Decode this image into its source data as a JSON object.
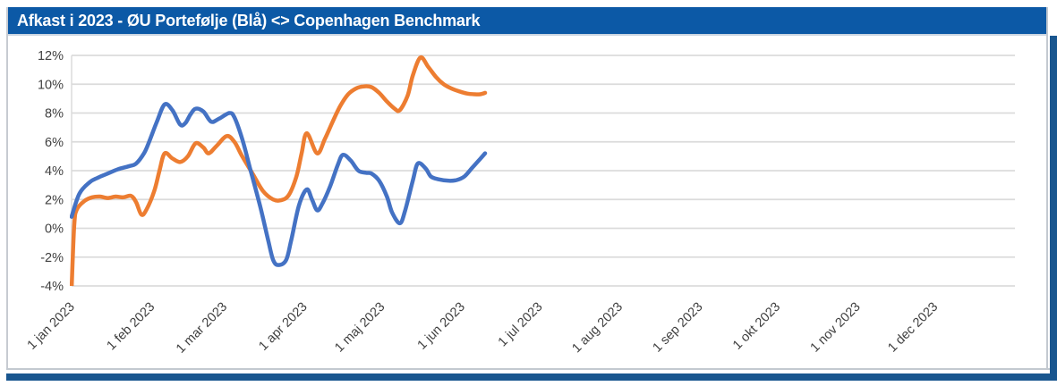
{
  "header": {
    "title": "Afkast i 2023 - ØU Portefølje (Blå) <> Copenhagen Benchmark"
  },
  "colors": {
    "title_bar_bg": "#0c59a6",
    "title_text": "#ffffff",
    "frame_accent": "#19568f",
    "gridline": "#dbdbdb",
    "axis_text": "#3f3f3f",
    "portfolio_blue": "#4472C4",
    "benchmark_orange": "#ED7D31"
  },
  "chart_data": {
    "type": "line",
    "title": "Afkast i 2023 - ØU Portefølje (Blå) <> Copenhagen Benchmark",
    "xlabel": "",
    "ylabel": "",
    "ylim": [
      -4,
      12
    ],
    "y_ticks": [
      12,
      10,
      8,
      6,
      4,
      2,
      0,
      -2,
      -4
    ],
    "y_tick_suffix": "%",
    "x_tick_labels": [
      "1 jan 2023",
      "1 feb 2023",
      "1 mar 2023",
      "1 apr 2023",
      "1 maj 2023",
      "1 jun 2023",
      "1 jul 2023",
      "1 aug 2023",
      "1 sep 2023",
      "1 okt 2023",
      "1 nov 2023",
      "1 dec 2023"
    ],
    "x_tick_days": [
      1,
      32,
      60,
      91,
      121,
      152,
      182,
      213,
      244,
      274,
      305,
      335
    ],
    "x_range_days": [
      1,
      366
    ],
    "grid": "horizontal-only",
    "legend_position": "none",
    "smooth": true,
    "series": [
      {
        "name": "Copenhagen Benchmark",
        "color": "#ED7D31",
        "points_day_pct": [
          [
            1,
            -4.2
          ],
          [
            2,
            0.2
          ],
          [
            3,
            1.3
          ],
          [
            6,
            1.9
          ],
          [
            9,
            2.15
          ],
          [
            12,
            2.2
          ],
          [
            15,
            2.1
          ],
          [
            18,
            2.2
          ],
          [
            21,
            2.15
          ],
          [
            24,
            2.25
          ],
          [
            26,
            1.8
          ],
          [
            28,
            0.95
          ],
          [
            30,
            1.3
          ],
          [
            33,
            2.6
          ],
          [
            35,
            4.0
          ],
          [
            37,
            5.2
          ],
          [
            40,
            4.85
          ],
          [
            43,
            4.6
          ],
          [
            46,
            5.0
          ],
          [
            49,
            5.9
          ],
          [
            52,
            5.6
          ],
          [
            54,
            5.2
          ],
          [
            57,
            5.7
          ],
          [
            61,
            6.4
          ],
          [
            64,
            6.0
          ],
          [
            67,
            5.0
          ],
          [
            71,
            3.8
          ],
          [
            75,
            2.6
          ],
          [
            79,
            2.0
          ],
          [
            82,
            1.95
          ],
          [
            85,
            2.3
          ],
          [
            88,
            3.6
          ],
          [
            90,
            5.2
          ],
          [
            92,
            6.6
          ],
          [
            96,
            5.2
          ],
          [
            99,
            6.2
          ],
          [
            102,
            7.4
          ],
          [
            105,
            8.5
          ],
          [
            108,
            9.3
          ],
          [
            111,
            9.7
          ],
          [
            114,
            9.85
          ],
          [
            117,
            9.8
          ],
          [
            120,
            9.4
          ],
          [
            123,
            8.8
          ],
          [
            126,
            8.3
          ],
          [
            128,
            8.2
          ],
          [
            131,
            9.2
          ],
          [
            133,
            10.6
          ],
          [
            136,
            11.85
          ],
          [
            139,
            11.2
          ],
          [
            142,
            10.5
          ],
          [
            145,
            10.0
          ],
          [
            148,
            9.7
          ],
          [
            151,
            9.5
          ],
          [
            154,
            9.35
          ],
          [
            157,
            9.3
          ],
          [
            159,
            9.3
          ],
          [
            161,
            9.4
          ]
        ]
      },
      {
        "name": "ØU Portefølje (Blå)",
        "color": "#4472C4",
        "points_day_pct": [
          [
            1,
            0.8
          ],
          [
            4,
            2.4
          ],
          [
            8,
            3.2
          ],
          [
            11,
            3.5
          ],
          [
            15,
            3.8
          ],
          [
            19,
            4.1
          ],
          [
            23,
            4.3
          ],
          [
            26,
            4.5
          ],
          [
            29,
            5.2
          ],
          [
            31,
            6.0
          ],
          [
            34,
            7.4
          ],
          [
            37,
            8.6
          ],
          [
            40,
            8.2
          ],
          [
            43,
            7.2
          ],
          [
            45,
            7.3
          ],
          [
            47,
            7.9
          ],
          [
            49,
            8.3
          ],
          [
            52,
            8.1
          ],
          [
            55,
            7.4
          ],
          [
            58,
            7.6
          ],
          [
            62,
            8.0
          ],
          [
            64,
            7.7
          ],
          [
            67,
            6.2
          ],
          [
            70,
            4.2
          ],
          [
            74,
            1.5
          ],
          [
            77,
            -0.8
          ],
          [
            79,
            -2.2
          ],
          [
            81,
            -2.55
          ],
          [
            84,
            -2.2
          ],
          [
            86,
            -0.8
          ],
          [
            89,
            1.6
          ],
          [
            92,
            2.7
          ],
          [
            94,
            2.0
          ],
          [
            96,
            1.25
          ],
          [
            98,
            1.7
          ],
          [
            101,
            2.9
          ],
          [
            104,
            4.4
          ],
          [
            106,
            5.1
          ],
          [
            109,
            4.7
          ],
          [
            112,
            4.0
          ],
          [
            115,
            3.85
          ],
          [
            117,
            3.8
          ],
          [
            120,
            3.3
          ],
          [
            123,
            2.2
          ],
          [
            125,
            1.1
          ],
          [
            128,
            0.35
          ],
          [
            130,
            1.2
          ],
          [
            133,
            3.3
          ],
          [
            135,
            4.5
          ],
          [
            138,
            4.15
          ],
          [
            140,
            3.6
          ],
          [
            143,
            3.4
          ],
          [
            147,
            3.3
          ],
          [
            150,
            3.35
          ],
          [
            153,
            3.6
          ],
          [
            156,
            4.2
          ],
          [
            159,
            4.8
          ],
          [
            161,
            5.2
          ]
        ]
      }
    ]
  }
}
